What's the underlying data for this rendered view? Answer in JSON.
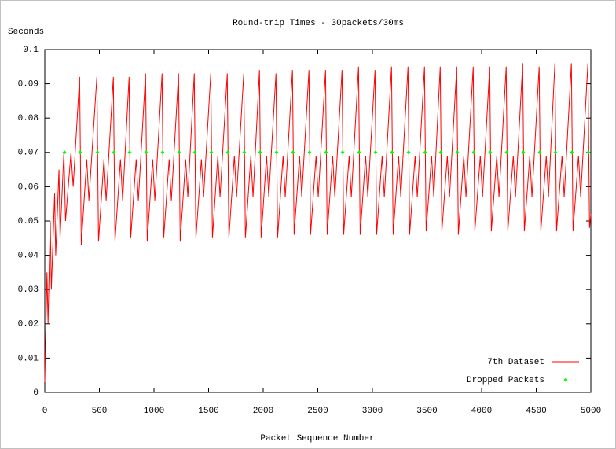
{
  "chart_data": {
    "type": "line",
    "title": "Round-trip Times - 30packets/30ms",
    "ylabel": "Seconds",
    "xlabel": "Packet Sequence Number",
    "xlim": [
      0,
      5000
    ],
    "ylim": [
      0,
      0.1
    ],
    "xticks": [
      0,
      500,
      1000,
      1500,
      2000,
      2500,
      3000,
      3500,
      4000,
      4500,
      5000
    ],
    "yticks": [
      0,
      0.01,
      0.02,
      0.03,
      0.04,
      0.05,
      0.06,
      0.07,
      0.08,
      0.09,
      0.1
    ],
    "legend": "lower right",
    "series": [
      {
        "name": "7th Dataset",
        "color": "#ff0000",
        "type": "line",
        "x": [
          0,
          20,
          30,
          50,
          60,
          90,
          100,
          130,
          140,
          175,
          190,
          240,
          260,
          319,
          334,
          384,
          404,
          477,
          492,
          542,
          562,
          628,
          643,
          693,
          713,
          772,
          787,
          837,
          857,
          923,
          938,
          988,
          1008,
          1074,
          1089,
          1139,
          1159,
          1225,
          1240,
          1290,
          1310,
          1369,
          1384,
          1434,
          1454,
          1520,
          1535,
          1585,
          1605,
          1671,
          1686,
          1736,
          1756,
          1822,
          1837,
          1887,
          1907,
          1966,
          1981,
          2031,
          2051,
          2117,
          2132,
          2182,
          2202,
          2268,
          2283,
          2333,
          2353,
          2419,
          2434,
          2484,
          2504,
          2571,
          2586,
          2636,
          2656,
          2722,
          2737,
          2787,
          2807,
          2873,
          2888,
          2938,
          2958,
          3024,
          3039,
          3089,
          3109,
          3175,
          3190,
          3240,
          3260,
          3326,
          3341,
          3391,
          3411,
          3477,
          3492,
          3542,
          3562,
          3621,
          3636,
          3686,
          3706,
          3772,
          3787,
          3837,
          3857,
          3923,
          3938,
          3988,
          4008,
          4074,
          4089,
          4139,
          4159,
          4225,
          4240,
          4290,
          4310,
          4376,
          4391,
          4441,
          4461,
          4527,
          4542,
          4592,
          4612,
          4671,
          4686,
          4736,
          4756,
          4822,
          4837,
          4887,
          4907,
          4973,
          4988,
          5000
        ],
        "values": [
          0.003,
          0.035,
          0.02,
          0.05,
          0.03,
          0.058,
          0.04,
          0.065,
          0.045,
          0.07,
          0.05,
          0.07,
          0.06,
          0.092,
          0.043,
          0.068,
          0.056,
          0.092,
          0.044,
          0.068,
          0.056,
          0.092,
          0.044,
          0.068,
          0.056,
          0.092,
          0.045,
          0.068,
          0.056,
          0.093,
          0.044,
          0.068,
          0.056,
          0.093,
          0.045,
          0.068,
          0.056,
          0.093,
          0.044,
          0.068,
          0.057,
          0.093,
          0.045,
          0.068,
          0.057,
          0.093,
          0.045,
          0.069,
          0.057,
          0.093,
          0.045,
          0.069,
          0.057,
          0.093,
          0.045,
          0.069,
          0.057,
          0.094,
          0.045,
          0.069,
          0.057,
          0.093,
          0.045,
          0.069,
          0.057,
          0.094,
          0.046,
          0.069,
          0.057,
          0.094,
          0.046,
          0.069,
          0.057,
          0.094,
          0.046,
          0.069,
          0.057,
          0.094,
          0.046,
          0.069,
          0.057,
          0.095,
          0.046,
          0.069,
          0.057,
          0.094,
          0.046,
          0.069,
          0.057,
          0.095,
          0.046,
          0.069,
          0.057,
          0.095,
          0.046,
          0.069,
          0.057,
          0.095,
          0.047,
          0.069,
          0.057,
          0.095,
          0.047,
          0.069,
          0.057,
          0.095,
          0.046,
          0.069,
          0.057,
          0.095,
          0.047,
          0.069,
          0.057,
          0.095,
          0.047,
          0.069,
          0.057,
          0.095,
          0.047,
          0.069,
          0.057,
          0.096,
          0.047,
          0.069,
          0.057,
          0.095,
          0.047,
          0.069,
          0.057,
          0.096,
          0.047,
          0.069,
          0.057,
          0.096,
          0.047,
          0.069,
          0.057,
          0.096,
          0.048,
          0.052
        ]
      },
      {
        "name": "Dropped Packets",
        "color": "#00ff00",
        "type": "scatter",
        "x": [
          180,
          324,
          482,
          633,
          777,
          928,
          1079,
          1230,
          1374,
          1525,
          1676,
          1827,
          1971,
          2122,
          2273,
          2424,
          2576,
          2727,
          2878,
          3029,
          3180,
          3331,
          3482,
          3626,
          3777,
          3928,
          4079,
          4230,
          4381,
          4532,
          4676,
          4827,
          4978
        ],
        "values": [
          0.07,
          0.07,
          0.07,
          0.07,
          0.07,
          0.07,
          0.07,
          0.07,
          0.07,
          0.07,
          0.07,
          0.07,
          0.07,
          0.07,
          0.07,
          0.07,
          0.07,
          0.07,
          0.07,
          0.07,
          0.07,
          0.07,
          0.07,
          0.07,
          0.07,
          0.07,
          0.07,
          0.07,
          0.07,
          0.07,
          0.07,
          0.07,
          0.07
        ]
      }
    ]
  }
}
